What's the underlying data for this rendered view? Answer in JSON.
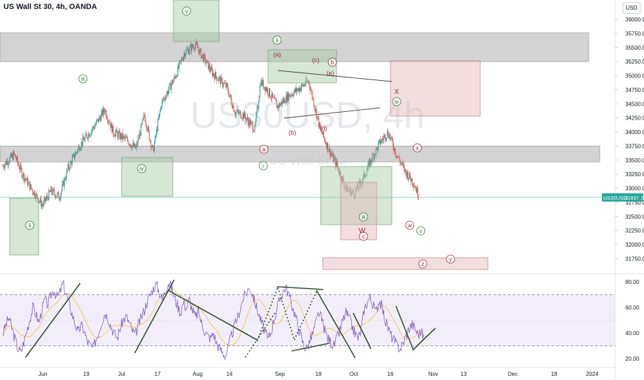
{
  "header": {
    "title": "US Wall St 30, 4h, OANDA",
    "currency": "USD"
  },
  "watermark": {
    "symbol": "US30USD, 4h",
    "name": "US Wall St 30"
  },
  "price_tag": {
    "symbol": "US30USD",
    "value": "32837.1"
  },
  "chart_data": [
    {
      "type": "candlestick",
      "title": "US Wall St 30, 4h, OANDA",
      "ylabel": "USD",
      "ylim": [
        31550,
        36300
      ],
      "y_ticks": [
        "31750.0",
        "32000.0",
        "32250.0",
        "32500.0",
        "32750.0",
        "33000.0",
        "33250.0",
        "33500.0",
        "33750.0",
        "34000.0",
        "34250.0",
        "34500.0",
        "34750.0",
        "35000.0",
        "35250.0",
        "35500.0",
        "35750.0",
        "36000.0"
      ],
      "x_ticks": [
        "Jun",
        "19",
        "Jul",
        "17",
        "Aug",
        "14",
        "Sep",
        "18",
        "Oct",
        "16",
        "Nov",
        "13",
        "Dec",
        "18",
        "2024"
      ],
      "last_price": 32837.1,
      "price_path": [
        {
          "t": 0,
          "p": 33400
        },
        {
          "t": 4,
          "p": 33600
        },
        {
          "t": 7,
          "p": 33250
        },
        {
          "t": 10,
          "p": 33000
        },
        {
          "t": 14,
          "p": 32700
        },
        {
          "t": 17,
          "p": 32950
        },
        {
          "t": 20,
          "p": 32850
        },
        {
          "t": 23,
          "p": 33350
        },
        {
          "t": 27,
          "p": 33750
        },
        {
          "t": 33,
          "p": 34150
        },
        {
          "t": 36,
          "p": 34400
        },
        {
          "t": 39,
          "p": 34000
        },
        {
          "t": 44,
          "p": 33850
        },
        {
          "t": 47,
          "p": 33700
        },
        {
          "t": 50,
          "p": 34300
        },
        {
          "t": 53,
          "p": 33650
        },
        {
          "t": 56,
          "p": 34500
        },
        {
          "t": 61,
          "p": 35000
        },
        {
          "t": 64,
          "p": 35400
        },
        {
          "t": 68,
          "p": 35550
        },
        {
          "t": 71,
          "p": 35300
        },
        {
          "t": 74,
          "p": 35050
        },
        {
          "t": 79,
          "p": 34800
        },
        {
          "t": 82,
          "p": 34350
        },
        {
          "t": 85,
          "p": 34300
        },
        {
          "t": 89,
          "p": 34050
        },
        {
          "t": 91,
          "p": 34900
        },
        {
          "t": 94,
          "p": 34700
        },
        {
          "t": 97,
          "p": 34450
        },
        {
          "t": 101,
          "p": 34650
        },
        {
          "t": 104,
          "p": 34750
        },
        {
          "t": 108,
          "p": 34900
        },
        {
          "t": 112,
          "p": 34050
        },
        {
          "t": 115,
          "p": 33700
        },
        {
          "t": 118,
          "p": 33400
        },
        {
          "t": 121,
          "p": 33000
        },
        {
          "t": 124,
          "p": 32900
        },
        {
          "t": 127,
          "p": 33150
        },
        {
          "t": 130,
          "p": 33500
        },
        {
          "t": 133,
          "p": 33800
        },
        {
          "t": 136,
          "p": 34000
        },
        {
          "t": 139,
          "p": 33600
        },
        {
          "t": 142,
          "p": 33300
        },
        {
          "t": 145,
          "p": 33100
        },
        {
          "t": 147,
          "p": 32850
        }
      ],
      "zones": [
        {
          "kind": "resistance",
          "from": 35250,
          "to": 35760
        },
        {
          "kind": "support",
          "from": 33470,
          "to": 33750
        },
        {
          "kind": "buy",
          "from": 32150,
          "to": 32850
        },
        {
          "kind": "buy",
          "from": 32850,
          "to": 33550
        },
        {
          "kind": "buy",
          "from": 35610,
          "to": 36300
        },
        {
          "kind": "buy",
          "from": 34900,
          "to": 35500
        },
        {
          "kind": "buy",
          "from": 32350,
          "to": 33400
        },
        {
          "kind": "sell",
          "from": 32100,
          "to": 33150
        },
        {
          "kind": "sell",
          "from": 34280,
          "to": 35270
        },
        {
          "kind": "sell",
          "from": 31640,
          "to": 31860
        }
      ],
      "wave_labels": [
        {
          "text": "ii",
          "style": "green-circle"
        },
        {
          "text": "iii",
          "style": "green-circle"
        },
        {
          "text": "iv",
          "style": "green-circle"
        },
        {
          "text": "v",
          "style": "green-circle"
        },
        {
          "text": "ii",
          "style": "green-circle"
        },
        {
          "text": "i",
          "style": "green-circle"
        },
        {
          "text": "iii",
          "style": "green-circle"
        },
        {
          "text": "iv",
          "style": "green-circle"
        },
        {
          "text": "v",
          "style": "green-circle"
        },
        {
          "text": "(a)",
          "style": "red-text"
        },
        {
          "text": "(b)",
          "style": "red-text"
        },
        {
          "text": "(c)",
          "style": "red-text"
        },
        {
          "text": "(d)",
          "style": "red-text"
        },
        {
          "text": "(e)",
          "style": "red-text"
        },
        {
          "text": "a",
          "style": "red-circle"
        },
        {
          "text": "b",
          "style": "red-circle"
        },
        {
          "text": "c",
          "style": "red-circle"
        },
        {
          "text": "x",
          "style": "red-circle"
        },
        {
          "text": "w",
          "style": "red-circle"
        },
        {
          "text": "y",
          "style": "red-circle"
        },
        {
          "text": "z",
          "style": "red-circle"
        },
        {
          "text": "X",
          "style": "red-text"
        },
        {
          "text": "W",
          "style": "red-text"
        }
      ]
    },
    {
      "type": "line",
      "ylim": [
        15,
        85
      ],
      "y_ticks": [
        "20.00",
        "40.00",
        "60.00",
        "80.00"
      ],
      "band": [
        30,
        70
      ],
      "rsi": [
        39,
        46,
        52,
        44,
        36,
        28,
        25,
        33,
        42,
        51,
        60,
        55,
        48,
        58,
        66,
        62,
        70,
        74,
        68,
        72,
        79,
        71,
        63,
        55,
        48,
        40,
        46,
        42,
        34,
        30,
        28,
        35,
        42,
        50,
        56,
        52,
        45,
        40,
        36,
        44,
        50,
        53,
        48,
        42,
        38,
        46,
        52,
        58,
        65,
        70,
        75,
        78,
        72,
        66,
        74,
        80,
        76,
        68,
        62,
        56,
        64,
        60,
        66,
        58,
        52,
        57,
        48,
        42,
        38,
        36,
        40,
        32,
        28,
        25,
        22,
        30,
        38,
        46,
        52,
        60,
        68,
        72,
        76,
        70,
        62,
        55,
        48,
        42,
        35,
        40,
        50,
        58,
        66,
        72,
        76,
        70,
        62,
        55,
        46,
        38,
        30,
        28,
        34,
        40,
        48,
        56,
        50,
        42,
        36,
        33,
        30,
        36,
        42,
        50,
        56,
        52,
        45,
        40,
        36,
        42,
        58,
        64,
        68,
        62,
        56,
        66,
        60,
        50,
        44,
        38,
        34,
        30,
        28,
        32,
        38,
        44,
        47,
        43,
        39,
        41,
        36
      ]
    }
  ]
}
